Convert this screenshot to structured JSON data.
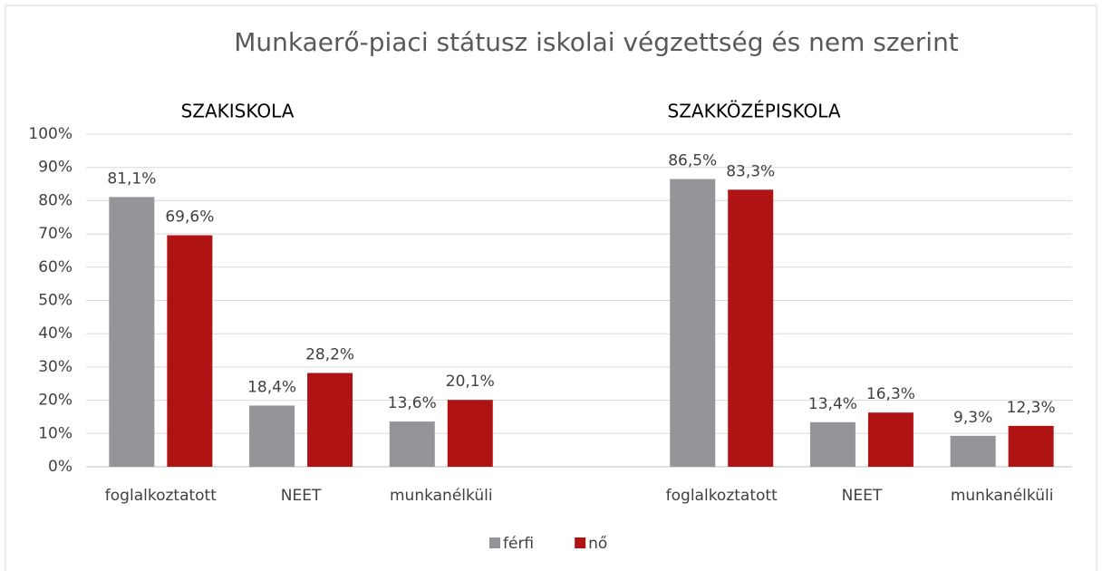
{
  "chart_data": {
    "type": "bar",
    "title": "Munkaerő-piaci státusz iskolai végzettség és nem szerint",
    "annotations": [
      "SZAKISKOLA",
      "SZAKKÖZÉPISKOLA"
    ],
    "categories": [
      "foglalkoztatott",
      "NEET",
      "munkanélküli",
      null,
      "foglalkoztatott",
      "NEET",
      "munkanélküli"
    ],
    "series": [
      {
        "name": "férfi",
        "color": "#939598",
        "values": [
          81.1,
          18.4,
          13.6,
          null,
          86.5,
          13.4,
          9.3
        ],
        "value_labels": [
          "81,1%",
          "18,4%",
          "13,6%",
          null,
          "86,5%",
          "13,4%",
          "9,3%"
        ]
      },
      {
        "name": "nő",
        "color": "#b01313",
        "values": [
          69.6,
          28.2,
          20.1,
          null,
          83.3,
          16.3,
          12.3
        ],
        "value_labels": [
          "69,6%",
          "28,2%",
          "20,1%",
          null,
          "83,3%",
          "16,3%",
          "12,3%"
        ]
      }
    ],
    "ylim": [
      0,
      100
    ],
    "yticks": [
      {
        "value": 0,
        "label": "0%"
      },
      {
        "value": 10,
        "label": "10%"
      },
      {
        "value": 20,
        "label": "20%"
      },
      {
        "value": 30,
        "label": "30%"
      },
      {
        "value": 40,
        "label": "40%"
      },
      {
        "value": 50,
        "label": "50%"
      },
      {
        "value": 60,
        "label": "60%"
      },
      {
        "value": 70,
        "label": "70%"
      },
      {
        "value": 80,
        "label": "80%"
      },
      {
        "value": 90,
        "label": "90%"
      },
      {
        "value": 100,
        "label": "100%"
      }
    ],
    "grid": true,
    "legend": "bottom"
  }
}
